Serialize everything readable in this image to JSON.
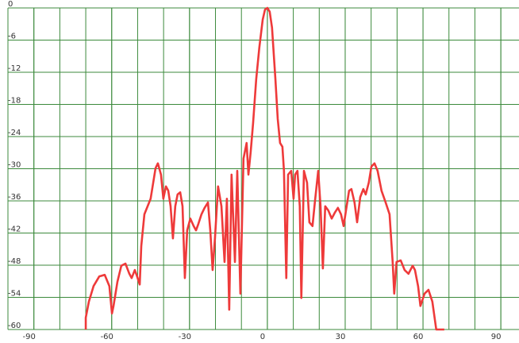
{
  "chart_data": {
    "type": "line",
    "x": [
      -70.0,
      -70.0,
      -68.8,
      -67.0,
      -64.8,
      -62.7,
      -60.9,
      -59.9,
      -59.3,
      -57.8,
      -56.3,
      -54.7,
      -53.2,
      -52.3,
      -51.1,
      -50.2,
      -49.2,
      -48.6,
      -47.4,
      -45.0,
      -43.1,
      -42.2,
      -41.0,
      -40.1,
      -39.1,
      -38.2,
      -37.3,
      -36.4,
      -35.5,
      -34.6,
      -33.6,
      -32.7,
      -31.8,
      -30.9,
      -29.7,
      -28.4,
      -27.5,
      -26.6,
      -25.4,
      -24.2,
      -22.9,
      -22.0,
      -21.1,
      -20.2,
      -19.0,
      -17.7,
      -16.5,
      -15.6,
      -14.7,
      -13.8,
      -12.5,
      -11.6,
      -10.4,
      -9.2,
      -8.0,
      -7.3,
      -6.4,
      -5.5,
      -4.3,
      -3.1,
      -1.8,
      -0.9,
      0,
      0.9,
      1.8,
      3.1,
      4.0,
      4.9,
      5.8,
      6.4,
      7.3,
      8.0,
      9.2,
      10.1,
      10.7,
      11.6,
      12.5,
      13.1,
      14.1,
      15.3,
      16.2,
      17.4,
      18.3,
      19.6,
      20.5,
      21.4,
      22.3,
      23.5,
      24.8,
      26.0,
      27.2,
      28.4,
      29.4,
      30.3,
      31.5,
      32.4,
      33.6,
      34.6,
      35.8,
      37.0,
      37.9,
      39.1,
      40.1,
      41.3,
      42.5,
      44.0,
      45.6,
      47.1,
      48.3,
      48.9,
      49.8,
      51.4,
      52.9,
      54.4,
      56.0,
      56.9,
      58.1,
      59.0,
      60.6,
      62.1,
      63.6,
      65.1,
      68.2
    ],
    "series": [
      {
        "color": "#ee3a3a",
        "values": [
          -60.0,
          -57.8,
          -54.8,
          -51.9,
          -50.1,
          -49.8,
          -51.9,
          -57.0,
          -55.6,
          -51.1,
          -48.1,
          -47.7,
          -49.6,
          -50.4,
          -48.9,
          -50.1,
          -51.6,
          -44.4,
          -38.5,
          -35.6,
          -29.9,
          -29.0,
          -31.1,
          -35.6,
          -33.3,
          -34.1,
          -37.0,
          -43.0,
          -37.0,
          -34.8,
          -34.4,
          -37.0,
          -50.4,
          -41.5,
          -39.3,
          -40.7,
          -41.5,
          -40.3,
          -38.5,
          -37.3,
          -36.3,
          -41.5,
          -48.9,
          -43.0,
          -33.3,
          -37.0,
          -47.4,
          -35.6,
          -56.3,
          -31.1,
          -47.4,
          -30.4,
          -53.3,
          -28.1,
          -25.2,
          -31.1,
          -26.7,
          -21.5,
          -13.3,
          -7.4,
          -2.2,
          -0.3,
          0,
          -0.7,
          -3.7,
          -13.3,
          -20.7,
          -25.2,
          -25.9,
          -30.4,
          -50.4,
          -31.1,
          -30.4,
          -35.6,
          -31.1,
          -30.4,
          -37.0,
          -54.1,
          -30.4,
          -32.6,
          -40.0,
          -40.7,
          -36.3,
          -30.4,
          -37.0,
          -48.6,
          -37.0,
          -37.8,
          -39.3,
          -38.2,
          -37.3,
          -38.5,
          -40.7,
          -37.8,
          -34.1,
          -33.8,
          -36.3,
          -40.0,
          -35.3,
          -33.8,
          -34.8,
          -32.6,
          -29.6,
          -29.0,
          -30.4,
          -34.1,
          -36.3,
          -38.5,
          -47.4,
          -53.3,
          -47.4,
          -47.1,
          -48.9,
          -49.6,
          -48.1,
          -48.9,
          -51.9,
          -55.6,
          -53.3,
          -52.6,
          -54.8,
          -60.0,
          -60.0
        ]
      }
    ],
    "xlim": [
      -100,
      97
    ],
    "xticks": [
      -90,
      -60,
      -30,
      0,
      30,
      60,
      90
    ],
    "ylim": [
      -60,
      0
    ],
    "yticks": [
      0,
      -6,
      -12,
      -18,
      -24,
      -30,
      -36,
      -42,
      -48,
      -54,
      -60
    ],
    "grid": true
  }
}
